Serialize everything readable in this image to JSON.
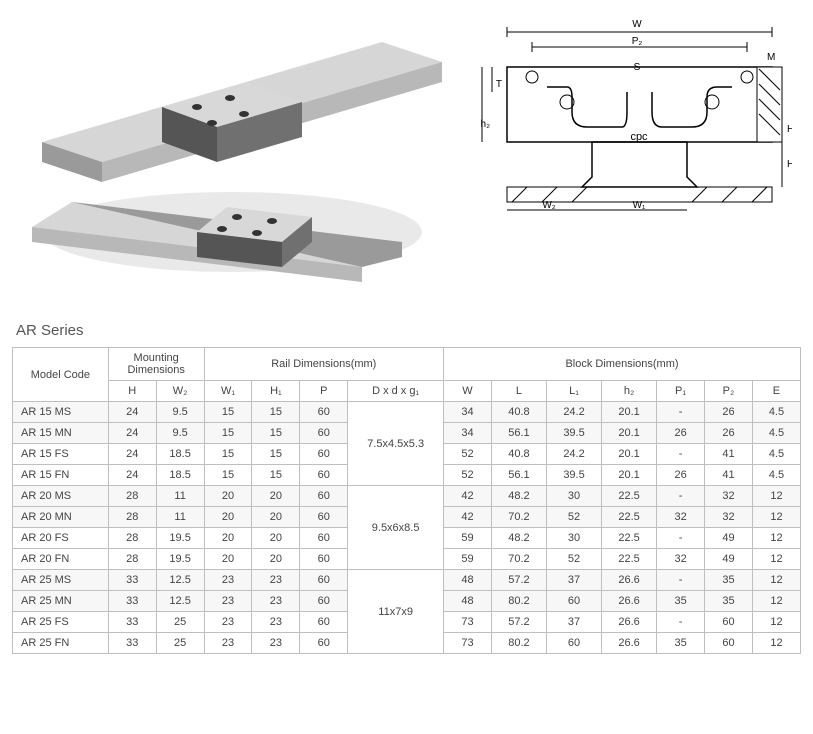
{
  "series_title": "AR Series",
  "headers": {
    "model": "Model Code",
    "mounting": "Mounting Dimensions",
    "rail": "Rail Dimensions(mm)",
    "block": "Block Dimensions(mm)",
    "H": "H",
    "W2": "W₂",
    "W1": "W₁",
    "H1": "H₁",
    "P": "P",
    "Dxdxg1": "D x d x g₁",
    "W": "W",
    "L": "L",
    "L1": "L₁",
    "h2": "h₂",
    "P1": "P₁",
    "P2": "P₂",
    "E": "E"
  },
  "dxd_groups": [
    "7.5x4.5x5.3",
    "9.5x6x8.5",
    "11x7x9"
  ],
  "rows": [
    {
      "model": "AR 15 MS",
      "H": "24",
      "W2": "9.5",
      "W1": "15",
      "H1": "15",
      "P": "60",
      "W": "34",
      "L": "40.8",
      "L1": "24.2",
      "h2": "20.1",
      "P1": "-",
      "P2": "26",
      "E": "4.5",
      "alt": true
    },
    {
      "model": "AR 15 MN",
      "H": "24",
      "W2": "9.5",
      "W1": "15",
      "H1": "15",
      "P": "60",
      "W": "34",
      "L": "56.1",
      "L1": "39.5",
      "h2": "20.1",
      "P1": "26",
      "P2": "26",
      "E": "4.5",
      "alt": true
    },
    {
      "model": "AR 15 FS",
      "H": "24",
      "W2": "18.5",
      "W1": "15",
      "H1": "15",
      "P": "60",
      "W": "52",
      "L": "40.8",
      "L1": "24.2",
      "h2": "20.1",
      "P1": "-",
      "P2": "41",
      "E": "4.5",
      "alt": false
    },
    {
      "model": "AR 15 FN",
      "H": "24",
      "W2": "18.5",
      "W1": "15",
      "H1": "15",
      "P": "60",
      "W": "52",
      "L": "56.1",
      "L1": "39.5",
      "h2": "20.1",
      "P1": "26",
      "P2": "41",
      "E": "4.5",
      "alt": false
    },
    {
      "model": "AR 20 MS",
      "H": "28",
      "W2": "11",
      "W1": "20",
      "H1": "20",
      "P": "60",
      "W": "42",
      "L": "48.2",
      "L1": "30",
      "h2": "22.5",
      "P1": "-",
      "P2": "32",
      "E": "12",
      "alt": true
    },
    {
      "model": "AR 20 MN",
      "H": "28",
      "W2": "11",
      "W1": "20",
      "H1": "20",
      "P": "60",
      "W": "42",
      "L": "70.2",
      "L1": "52",
      "h2": "22.5",
      "P1": "32",
      "P2": "32",
      "E": "12",
      "alt": true
    },
    {
      "model": "AR 20 FS",
      "H": "28",
      "W2": "19.5",
      "W1": "20",
      "H1": "20",
      "P": "60",
      "W": "59",
      "L": "48.2",
      "L1": "30",
      "h2": "22.5",
      "P1": "-",
      "P2": "49",
      "E": "12",
      "alt": false
    },
    {
      "model": "AR 20 FN",
      "H": "28",
      "W2": "19.5",
      "W1": "20",
      "H1": "20",
      "P": "60",
      "W": "59",
      "L": "70.2",
      "L1": "52",
      "h2": "22.5",
      "P1": "32",
      "P2": "49",
      "E": "12",
      "alt": false
    },
    {
      "model": "AR 25 MS",
      "H": "33",
      "W2": "12.5",
      "W1": "23",
      "H1": "23",
      "P": "60",
      "W": "48",
      "L": "57.2",
      "L1": "37",
      "h2": "26.6",
      "P1": "-",
      "P2": "35",
      "E": "12",
      "alt": true
    },
    {
      "model": "AR 25 MN",
      "H": "33",
      "W2": "12.5",
      "W1": "23",
      "H1": "23",
      "P": "60",
      "W": "48",
      "L": "80.2",
      "L1": "60",
      "h2": "26.6",
      "P1": "35",
      "P2": "35",
      "E": "12",
      "alt": true
    },
    {
      "model": "AR 25 FS",
      "H": "33",
      "W2": "25",
      "W1": "23",
      "H1": "23",
      "P": "60",
      "W": "73",
      "L": "57.2",
      "L1": "37",
      "h2": "26.6",
      "P1": "-",
      "P2": "60",
      "E": "12",
      "alt": false
    },
    {
      "model": "AR 25 FN",
      "H": "33",
      "W2": "25",
      "W1": "23",
      "H1": "23",
      "P": "60",
      "W": "73",
      "L": "80.2",
      "L1": "60",
      "h2": "26.6",
      "P1": "35",
      "P2": "60",
      "E": "12",
      "alt": false
    }
  ],
  "diagram_labels": {
    "W": "W",
    "P2": "P₂",
    "M": "M",
    "S": "S",
    "T": "T",
    "h2": "h₂",
    "H": "H",
    "H1": "H₁",
    "W2": "W₂",
    "W1": "W₁",
    "cpc": "cpc"
  },
  "colors": {
    "border": "#bfbfbf",
    "text": "#444444",
    "rail_light": "#e8e8e8",
    "rail_mid": "#cfcfcf",
    "rail_dark": "#9a9a9a",
    "block_dark": "#5a5a5a",
    "block_top": "#d8d8d8",
    "shadow": "#b0b0b0"
  }
}
